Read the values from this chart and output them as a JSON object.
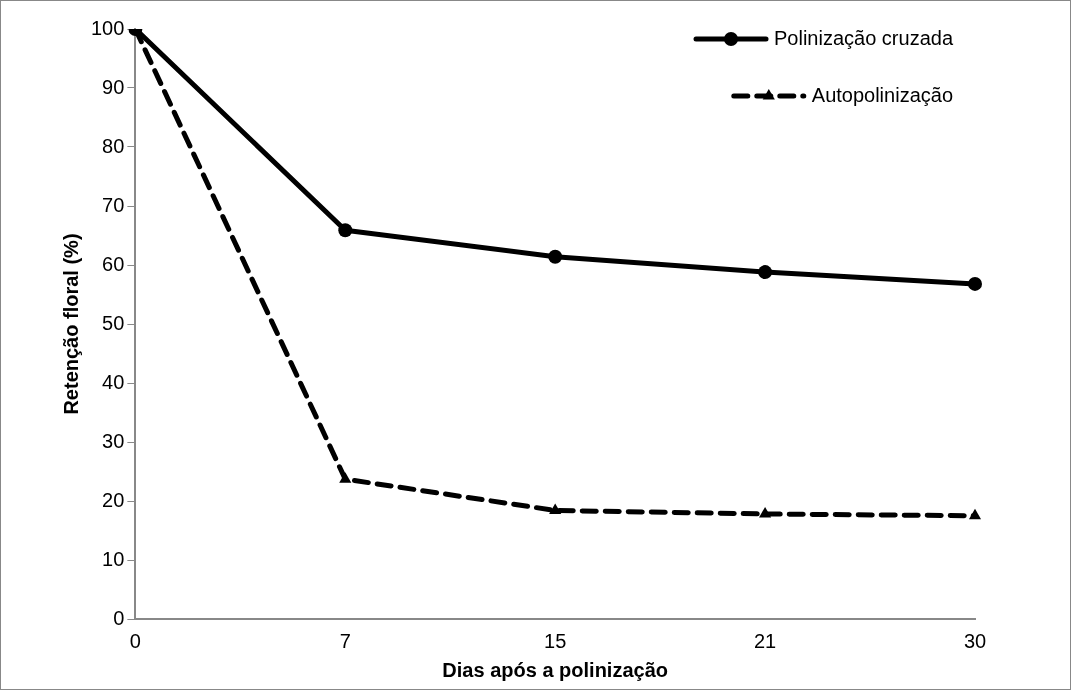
{
  "chart_data": {
    "type": "line",
    "xlabel": "Dias após a polinização",
    "ylabel": "Retenção floral (%)",
    "categories": [
      "0",
      "7",
      "15",
      "21",
      "30"
    ],
    "series": [
      {
        "name": "Polinização cruzada",
        "color": "#000000",
        "marker": "circle",
        "line_style": "solid",
        "values": [
          100,
          65.9,
          61.4,
          58.8,
          56.8
        ]
      },
      {
        "name": "Autopolinização",
        "color": "#000000",
        "marker": "triangle",
        "line_style": "dashed",
        "values": [
          100,
          23.7,
          18.4,
          17.8,
          17.5
        ]
      }
    ],
    "ylim": [
      0,
      100
    ],
    "yticks": [
      0,
      10,
      20,
      30,
      40,
      50,
      60,
      70,
      80,
      90,
      100
    ],
    "grid": false,
    "legend": "top right"
  }
}
